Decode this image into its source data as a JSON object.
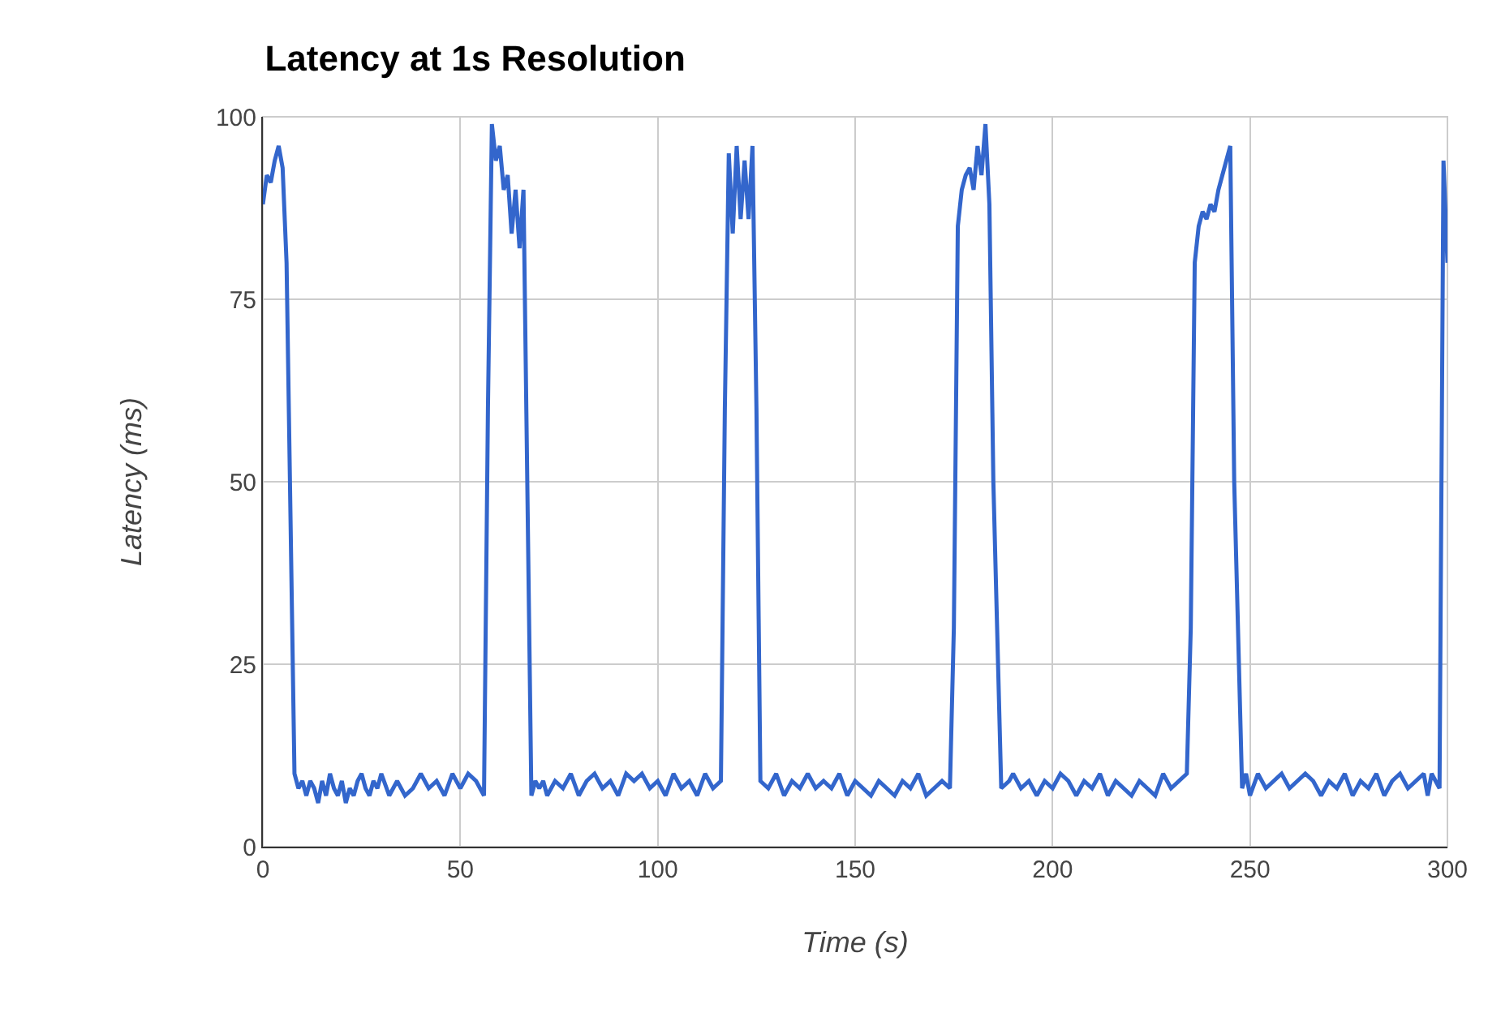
{
  "chart_data": {
    "type": "line",
    "title": "Latency at 1s Resolution",
    "xlabel": "Time (s)",
    "ylabel": "Latency (ms)",
    "x": [
      0,
      1,
      2,
      3,
      4,
      5,
      6,
      8,
      9,
      10,
      11,
      12,
      13,
      14,
      15,
      16,
      17,
      18,
      19,
      20,
      21,
      22,
      23,
      24,
      25,
      26,
      27,
      28,
      29,
      30,
      32,
      34,
      36,
      38,
      40,
      42,
      44,
      46,
      48,
      50,
      52,
      54,
      56,
      57,
      58,
      59,
      60,
      61,
      62,
      63,
      64,
      65,
      66,
      68,
      69,
      70,
      71,
      72,
      74,
      76,
      78,
      80,
      82,
      84,
      86,
      88,
      90,
      92,
      94,
      96,
      98,
      100,
      102,
      104,
      106,
      108,
      110,
      112,
      114,
      116,
      117,
      118,
      119,
      120,
      121,
      122,
      123,
      124,
      125,
      126,
      128,
      130,
      132,
      134,
      136,
      138,
      140,
      142,
      144,
      146,
      148,
      150,
      152,
      154,
      156,
      158,
      160,
      162,
      164,
      166,
      168,
      170,
      172,
      174,
      175,
      176,
      177,
      178,
      179,
      180,
      181,
      182,
      183,
      184,
      185,
      187,
      189,
      190,
      192,
      194,
      196,
      198,
      200,
      202,
      204,
      206,
      208,
      210,
      212,
      214,
      216,
      218,
      220,
      222,
      224,
      226,
      228,
      230,
      232,
      234,
      235,
      236,
      237,
      238,
      239,
      240,
      241,
      242,
      243,
      244,
      245,
      246,
      248,
      249,
      250,
      252,
      254,
      256,
      258,
      260,
      262,
      264,
      266,
      268,
      270,
      272,
      274,
      276,
      278,
      280,
      282,
      284,
      286,
      288,
      290,
      292,
      294,
      295,
      296,
      298,
      299,
      300
    ],
    "series": [
      {
        "color": "#3366cc",
        "values": [
          88,
          92,
          91,
          94,
          96,
          93,
          80,
          10,
          8,
          9,
          7,
          9,
          8,
          6,
          9,
          7,
          10,
          8,
          7,
          9,
          6,
          8,
          7,
          9,
          10,
          8,
          7,
          9,
          8,
          10,
          7,
          9,
          7,
          8,
          10,
          8,
          9,
          7,
          10,
          8,
          10,
          9,
          7,
          60,
          99,
          94,
          96,
          90,
          92,
          84,
          90,
          82,
          90,
          7,
          9,
          8,
          9,
          7,
          9,
          8,
          10,
          7,
          9,
          10,
          8,
          9,
          7,
          10,
          9,
          10,
          8,
          9,
          7,
          10,
          8,
          9,
          7,
          10,
          8,
          9,
          60,
          95,
          84,
          96,
          86,
          94,
          86,
          96,
          60,
          9,
          8,
          10,
          7,
          9,
          8,
          10,
          8,
          9,
          8,
          10,
          7,
          9,
          8,
          7,
          9,
          8,
          7,
          9,
          8,
          10,
          7,
          8,
          9,
          8,
          30,
          85,
          90,
          92,
          93,
          90,
          96,
          92,
          99,
          88,
          50,
          8,
          9,
          10,
          8,
          9,
          7,
          9,
          8,
          10,
          9,
          7,
          9,
          8,
          10,
          7,
          9,
          8,
          7,
          9,
          8,
          7,
          10,
          8,
          9,
          10,
          30,
          80,
          85,
          87,
          86,
          88,
          87,
          90,
          92,
          94,
          96,
          50,
          8,
          10,
          7,
          10,
          8,
          9,
          10,
          8,
          9,
          10,
          9,
          7,
          9,
          8,
          10,
          7,
          9,
          8,
          10,
          7,
          9,
          10,
          8,
          9,
          10,
          7,
          10,
          8,
          94,
          80
        ]
      }
    ],
    "xlim": [
      0,
      300
    ],
    "ylim": [
      0,
      100
    ],
    "xticks": [
      0,
      50,
      100,
      150,
      200,
      250,
      300
    ],
    "yticks": [
      0,
      25,
      50,
      75,
      100
    ],
    "grid": true,
    "legend": false
  }
}
